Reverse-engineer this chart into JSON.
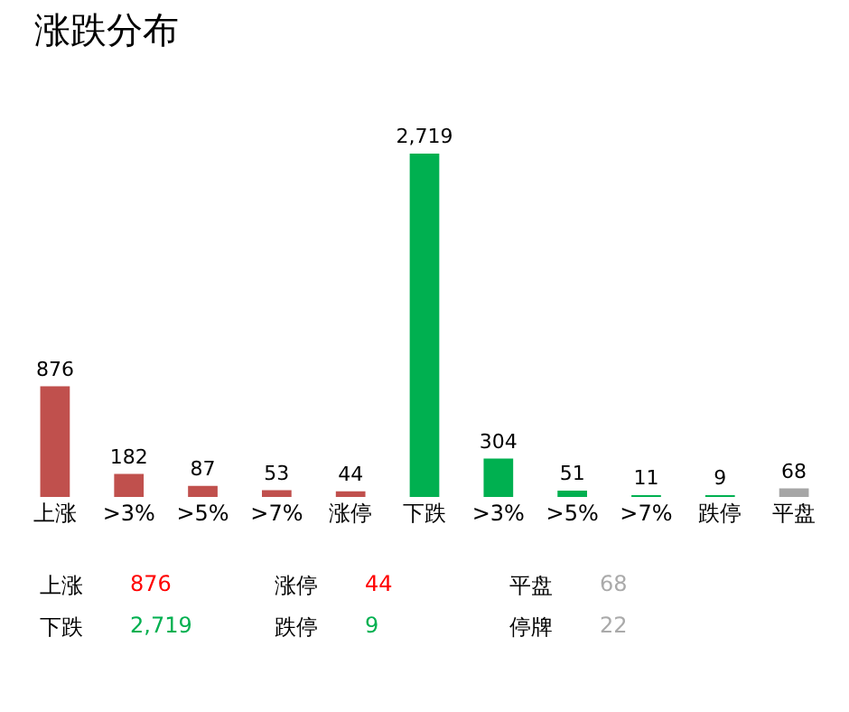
{
  "chart_data": {
    "type": "bar",
    "title": "涨跌分布",
    "categories": [
      "上涨",
      ">3%",
      ">5%",
      ">7%",
      "涨停",
      "下跌",
      ">3%",
      ">5%",
      ">7%",
      "跌停",
      "平盘"
    ],
    "values": [
      876,
      182,
      87,
      53,
      44,
      2719,
      304,
      51,
      11,
      9,
      68
    ],
    "value_labels": [
      "876",
      "182",
      "87",
      "53",
      "44",
      "2,719",
      "304",
      "51",
      "11",
      "9",
      "68"
    ],
    "colors": [
      "#c0504d",
      "#c0504d",
      "#c0504d",
      "#c0504d",
      "#c0504d",
      "#00b050",
      "#00b050",
      "#00b050",
      "#00b050",
      "#00b050",
      "#a6a6a6"
    ],
    "annotations": [
      "上涨",
      "876",
      "涨停",
      "44",
      "平盘",
      "68",
      "下跌",
      "2,719",
      "跌停",
      "9",
      "停牌",
      "22"
    ]
  }
}
